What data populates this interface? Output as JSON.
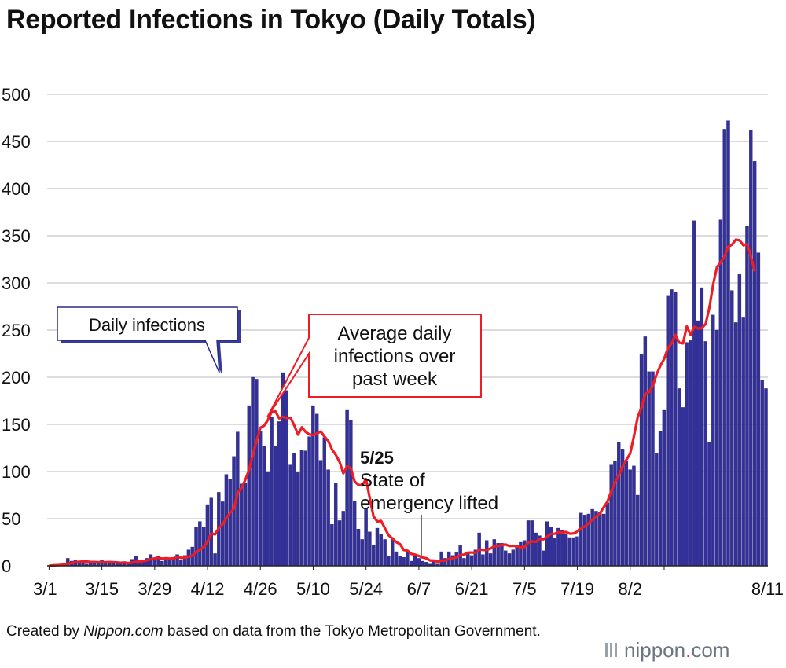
{
  "title": "Reported Infections in Tokyo (Daily Totals)",
  "footer": {
    "prefix": "Created by ",
    "site": "Nippon.com",
    "suffix": " based on data from the Tokyo Metropolitan Government."
  },
  "logo": {
    "name": "nippon",
    "dot": ".",
    "tld": "com"
  },
  "annotations": {
    "daily": "Daily infections",
    "average": [
      "Average daily",
      "infections over",
      "past week"
    ],
    "event_date": "5/25",
    "event_text": [
      "State of",
      "emergency lifted"
    ]
  },
  "colors": {
    "bar": "#34309a",
    "bar_edge": "#1a1860",
    "average_line": "#ee1c25",
    "grid": "#c8c8c8",
    "accent": "#ee1c25"
  },
  "chart_data": {
    "type": "bar",
    "title": "Reported Infections in Tokyo (Daily Totals)",
    "xlabel": "",
    "ylabel": "",
    "ylim": [
      0,
      500
    ],
    "yticks": [
      0,
      50,
      100,
      150,
      200,
      250,
      300,
      350,
      400,
      450,
      500
    ],
    "start_date": "3/1",
    "xtick_labels": [
      "3/1",
      "3/15",
      "3/29",
      "4/12",
      "4/26",
      "5/10",
      "5/24",
      "6/7",
      "6/21",
      "7/5",
      "7/19",
      "8/2",
      "8/11"
    ],
    "grid": true,
    "series": [
      {
        "name": "Daily infections",
        "type": "bar",
        "values": [
          0,
          1,
          1,
          2,
          3,
          8,
          5,
          6,
          5,
          3,
          2,
          3,
          5,
          4,
          6,
          4,
          5,
          3,
          3,
          2,
          4,
          2,
          7,
          10,
          4,
          6,
          8,
          12,
          8,
          10,
          5,
          8,
          7,
          9,
          12,
          6,
          11,
          17,
          20,
          41,
          47,
          41,
          65,
          72,
          13,
          78,
          68,
          97,
          92,
          116,
          142,
          87,
          88,
          170,
          200,
          198,
          143,
          127,
          100,
          158,
          127,
          153,
          205,
          186,
          107,
          119,
          99,
          123,
          122,
          137,
          170,
          161,
          112,
          136,
          102,
          44,
          88,
          48,
          58,
          165,
          154,
          69,
          39,
          28,
          61,
          36,
          22,
          40,
          34,
          28,
          10,
          30,
          15,
          10,
          9,
          15,
          5,
          10,
          8,
          5,
          4,
          2,
          5,
          2,
          15,
          8,
          15,
          11,
          14,
          22,
          8,
          14,
          11,
          17,
          35,
          12,
          27,
          13,
          28,
          24,
          24,
          16,
          13,
          17,
          22,
          25,
          27,
          48,
          48,
          35,
          32,
          16,
          47,
          41,
          29,
          40,
          38,
          34,
          30,
          30,
          31,
          56,
          54,
          55,
          60,
          58,
          57,
          55,
          67,
          107,
          111,
          131,
          124,
          111,
          102,
          106,
          75,
          224,
          243,
          206,
          206,
          119,
          143,
          165,
          286,
          293,
          290,
          188,
          168,
          237,
          239,
          366,
          260,
          295,
          238,
          131,
          266,
          250,
          367,
          463,
          472,
          292,
          258,
          309,
          263,
          360,
          462,
          429,
          332,
          197,
          188
        ],
        "color": "#34309a"
      },
      {
        "name": "Average daily infections over past week",
        "type": "line",
        "values": [
          0.0,
          0.5,
          0.7,
          1.0,
          1.4,
          2.5,
          2.9,
          3.9,
          4.3,
          4.6,
          4.6,
          4.1,
          4.1,
          3.9,
          3.9,
          3.9,
          4.1,
          3.9,
          3.7,
          3.3,
          3.6,
          3.0,
          3.4,
          4.4,
          4.6,
          5.1,
          5.9,
          7.0,
          7.9,
          8.4,
          7.6,
          8.1,
          7.6,
          8.0,
          9.4,
          8.5,
          8.5,
          9.7,
          10.9,
          14.5,
          17.2,
          19.8,
          25.7,
          34.4,
          33.4,
          40.4,
          43.9,
          50.9,
          56.4,
          60.7,
          77.6,
          82.7,
          91.1,
          101.7,
          117.9,
          132.3,
          146.4,
          148.7,
          154.7,
          163.3,
          163.9,
          156.4,
          158.1,
          156.6,
          157.1,
          148.6,
          139.1,
          147.0,
          142.0,
          139.3,
          138.7,
          140.6,
          142.4,
          137.1,
          132.3,
          123.4,
          117.6,
          110.1,
          98.1,
          105.6,
          103.4,
          89.3,
          85.9,
          85.3,
          92.0,
          71.6,
          52.3,
          47.0,
          47.6,
          39.9,
          32.3,
          29.0,
          25.1,
          23.1,
          16.7,
          16.1,
          12.6,
          11.9,
          10.4,
          8.9,
          8.0,
          5.6,
          5.6,
          4.4,
          5.7,
          5.6,
          7.3,
          7.7,
          9.3,
          11.3,
          11.9,
          14.0,
          14.1,
          13.9,
          17.3,
          16.9,
          16.8,
          18.4,
          20.6,
          21.0,
          22.1,
          22.6,
          21.0,
          21.3,
          20.7,
          19.4,
          20.0,
          24.4,
          25.9,
          25.4,
          28.6,
          28.0,
          31.1,
          33.9,
          34.0,
          35.7,
          35.3,
          35.9,
          34.1,
          34.4,
          36.3,
          39.7,
          41.9,
          44.9,
          49.2,
          52.4,
          55.6,
          62.2,
          68.3,
          79.3,
          88.4,
          96.1,
          105.4,
          112.6,
          119.0,
          137.6,
          157.8,
          168.1,
          182.6,
          184.2,
          190.8,
          203.1,
          212.3,
          219.4,
          231.0,
          235.9,
          244.9,
          236.6,
          235.9,
          254.0,
          245.0,
          253.4,
          251.6,
          252.1,
          256.5,
          274.0,
          298.6,
          316.9,
          322.0,
          328.1,
          338.6,
          340.6,
          345.9,
          345.1,
          339.9,
          341.0,
          328.3,
          312.4
        ]
      }
    ]
  }
}
